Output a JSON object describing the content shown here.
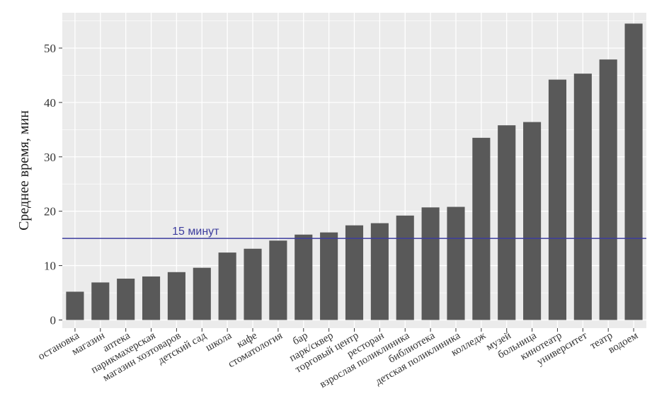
{
  "chart_data": {
    "type": "bar",
    "title": "",
    "xlabel": "",
    "ylabel": "Среднее время, мин",
    "ylim": [
      -1.5,
      56.5
    ],
    "yticks": [
      0,
      10,
      20,
      30,
      40,
      50
    ],
    "grid": true,
    "categories": [
      "остановка",
      "магазин",
      "аптека",
      "парикмахерская",
      "магазин хозтоваров",
      "детский сад",
      "школа",
      "кафе",
      "стоматология",
      "бар",
      "парк/сквер",
      "торговый центр",
      "ресторан",
      "взрослая поликлиника",
      "библиотека",
      "детская поликлиника",
      "колледж",
      "музей",
      "больница",
      "кинотеатр",
      "университет",
      "театр",
      "водоем"
    ],
    "values": [
      5.2,
      6.9,
      7.6,
      8.0,
      8.8,
      9.6,
      12.4,
      13.1,
      14.6,
      15.7,
      16.1,
      17.4,
      17.8,
      19.2,
      20.7,
      20.8,
      33.5,
      35.8,
      36.4,
      44.2,
      45.3,
      47.9,
      54.5
    ],
    "reference_line": {
      "value": 15,
      "label": "15 минут"
    },
    "colors": {
      "bar": "#595959",
      "panel": "#ebebeb",
      "grid": "#ffffff",
      "reference": "#3d3d9e"
    }
  }
}
